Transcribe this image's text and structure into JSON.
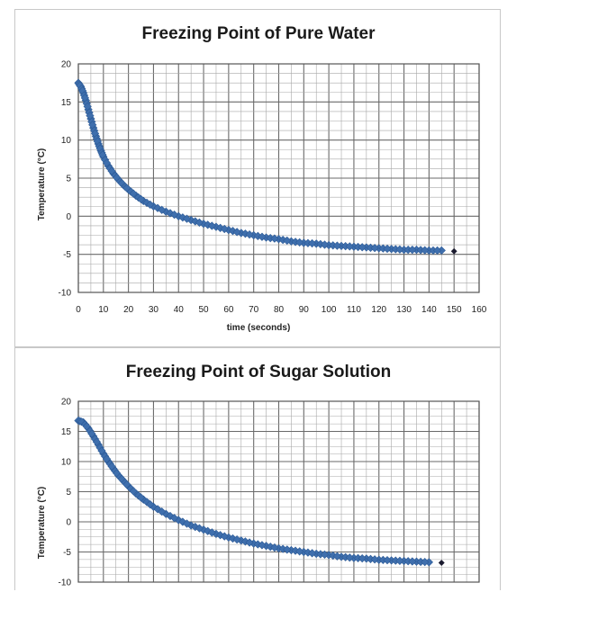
{
  "chart_data": [
    {
      "type": "scatter",
      "title": "Freezing Point of Pure Water",
      "xlabel": "time (seconds)",
      "ylabel": "Temperature (°C)",
      "xlim": [
        0,
        160
      ],
      "ylim": [
        -10,
        20
      ],
      "xticks": [
        "0",
        "10",
        "20",
        "30",
        "40",
        "50",
        "60",
        "70",
        "80",
        "90",
        "100",
        "110",
        "120",
        "130",
        "140",
        "150",
        "160"
      ],
      "yticks": [
        "20",
        "15",
        "10",
        "5",
        "0",
        "-5",
        "-10"
      ],
      "grid": true,
      "marker_color": "#3f6fad",
      "last_marker_color": "#1a1a2e",
      "series": [
        {
          "x": [
            0,
            1,
            2,
            3,
            4,
            5,
            6,
            7,
            8,
            9,
            10,
            12,
            14,
            16,
            18,
            20,
            23,
            26,
            30,
            35,
            40,
            45,
            50,
            55,
            60,
            65,
            70,
            75,
            80,
            85,
            90,
            95,
            100,
            105,
            110,
            115,
            120,
            125,
            130,
            135,
            140,
            145,
            150
          ],
          "y": [
            17.5,
            17.0,
            16.2,
            15.2,
            14.0,
            12.8,
            11.6,
            10.5,
            9.5,
            8.6,
            7.8,
            6.6,
            5.6,
            4.8,
            4.1,
            3.5,
            2.7,
            2.0,
            1.3,
            0.6,
            0.0,
            -0.5,
            -1.0,
            -1.4,
            -1.8,
            -2.2,
            -2.5,
            -2.8,
            -3.0,
            -3.3,
            -3.5,
            -3.6,
            -3.8,
            -3.9,
            -4.0,
            -4.1,
            -4.2,
            -4.3,
            -4.4,
            -4.4,
            -4.5,
            -4.5,
            -4.6
          ]
        }
      ]
    },
    {
      "type": "scatter",
      "title": "Freezing Point of Sugar Solution",
      "xlabel": "",
      "ylabel": "Temperature (°C)",
      "xlim": [
        0,
        160
      ],
      "ylim": [
        -10,
        20
      ],
      "yticks": [
        "20",
        "15",
        "10",
        "5",
        "0",
        "-5",
        "-10"
      ],
      "grid": true,
      "marker_color": "#3f6fad",
      "last_marker_color": "#1a1a2e",
      "series": [
        {
          "x": [
            0,
            2,
            4,
            6,
            8,
            10,
            12,
            14,
            16,
            18,
            20,
            23,
            26,
            30,
            35,
            40,
            45,
            50,
            55,
            60,
            65,
            70,
            75,
            80,
            85,
            90,
            95,
            100,
            105,
            110,
            115,
            120,
            125,
            130,
            135,
            140,
            145
          ],
          "y": [
            16.8,
            16.5,
            15.5,
            14.2,
            12.8,
            11.3,
            10.0,
            8.8,
            7.7,
            6.8,
            5.9,
            4.7,
            3.7,
            2.5,
            1.3,
            0.3,
            -0.6,
            -1.3,
            -2.0,
            -2.6,
            -3.1,
            -3.6,
            -4.0,
            -4.4,
            -4.7,
            -5.0,
            -5.3,
            -5.5,
            -5.8,
            -6.0,
            -6.1,
            -6.3,
            -6.4,
            -6.5,
            -6.6,
            -6.7,
            -6.8
          ]
        }
      ]
    }
  ]
}
